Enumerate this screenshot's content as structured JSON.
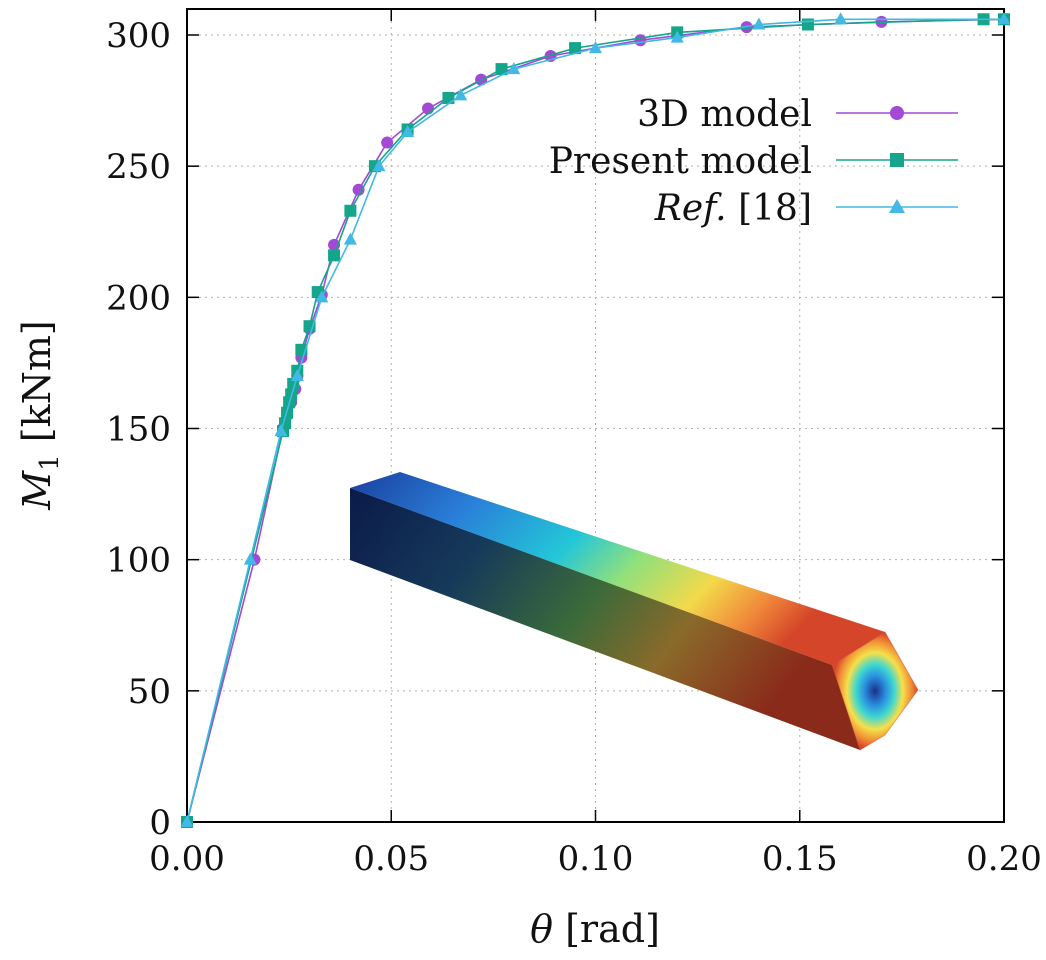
{
  "chart_data": {
    "type": "line",
    "xlabel": "θ [rad]",
    "xlabel_parts": {
      "symbol": "θ",
      "unit": "[rad]"
    },
    "ylabel": "M1 [kNm]",
    "ylabel_parts": {
      "symbol": "M",
      "subscript": "1",
      "unit": "[kNm]"
    },
    "xlim": [
      0,
      0.2
    ],
    "ylim": [
      0,
      300
    ],
    "xticks": [
      "0.00",
      "0.05",
      "0.10",
      "0.15",
      "0.20"
    ],
    "yticks": [
      "0",
      "50",
      "100",
      "150",
      "200",
      "250",
      "300"
    ],
    "grid": true,
    "legend_position": "top-right",
    "series": [
      {
        "name": "3D model",
        "color": "#a349d6",
        "marker": "circle",
        "points": [
          [
            0,
            0
          ],
          [
            0.0165,
            100
          ],
          [
            0.0235,
            150
          ],
          [
            0.0245,
            155
          ],
          [
            0.0255,
            160
          ],
          [
            0.0265,
            165
          ],
          [
            0.027,
            170
          ],
          [
            0.028,
            177
          ],
          [
            0.03,
            188
          ],
          [
            0.033,
            201
          ],
          [
            0.036,
            220
          ],
          [
            0.042,
            241
          ],
          [
            0.049,
            259
          ],
          [
            0.059,
            272
          ],
          [
            0.072,
            283
          ],
          [
            0.089,
            292
          ],
          [
            0.111,
            298
          ],
          [
            0.137,
            303
          ],
          [
            0.17,
            305
          ],
          [
            0.2,
            306
          ]
        ]
      },
      {
        "name": "Present model",
        "color": "#14a58a",
        "marker": "square",
        "points": [
          [
            0,
            0
          ],
          [
            0.0235,
            149
          ],
          [
            0.024,
            152
          ],
          [
            0.0245,
            156
          ],
          [
            0.025,
            160
          ],
          [
            0.0255,
            163
          ],
          [
            0.026,
            167
          ],
          [
            0.027,
            172
          ],
          [
            0.028,
            180
          ],
          [
            0.03,
            189
          ],
          [
            0.032,
            202
          ],
          [
            0.036,
            216
          ],
          [
            0.04,
            233
          ],
          [
            0.046,
            250
          ],
          [
            0.054,
            264
          ],
          [
            0.064,
            276
          ],
          [
            0.077,
            287
          ],
          [
            0.095,
            295
          ],
          [
            0.12,
            301
          ],
          [
            0.152,
            304
          ],
          [
            0.195,
            306
          ],
          [
            0.2,
            306
          ]
        ]
      },
      {
        "name": "Ref. [18]",
        "name_parts": {
          "italic": "Ref.",
          "rest": "[18]"
        },
        "color": "#41b9e4",
        "marker": "triangle",
        "points": [
          [
            0,
            0
          ],
          [
            0.0155,
            100
          ],
          [
            0.023,
            149
          ],
          [
            0.027,
            170
          ],
          [
            0.033,
            200
          ],
          [
            0.04,
            222
          ],
          [
            0.047,
            250
          ],
          [
            0.054,
            263
          ],
          [
            0.067,
            277
          ],
          [
            0.08,
            287
          ],
          [
            0.1,
            295
          ],
          [
            0.12,
            299
          ],
          [
            0.14,
            304
          ],
          [
            0.16,
            306
          ],
          [
            0.2,
            306
          ]
        ]
      }
    ],
    "inset": {
      "description": "3D beam stress field colour map",
      "colormap": [
        "#0b1f5c",
        "#1f4fbf",
        "#19c4d6",
        "#7fe58a",
        "#f2e24a",
        "#f08a2c",
        "#d4371f"
      ]
    }
  }
}
